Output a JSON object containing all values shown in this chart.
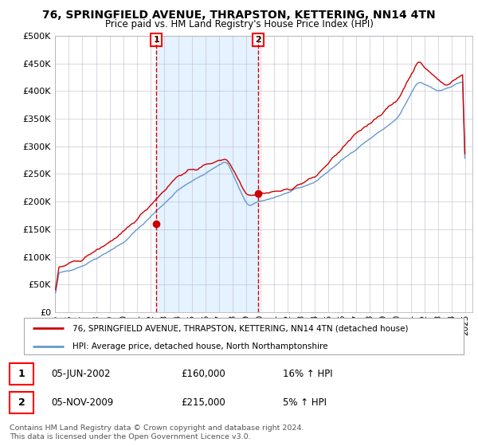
{
  "title_line1": "76, SPRINGFIELD AVENUE, THRAPSTON, KETTERING, NN14 4TN",
  "title_line2": "Price paid vs. HM Land Registry's House Price Index (HPI)",
  "ylabel_ticks": [
    "£0",
    "£50K",
    "£100K",
    "£150K",
    "£200K",
    "£250K",
    "£300K",
    "£350K",
    "£400K",
    "£450K",
    "£500K"
  ],
  "ytick_values": [
    0,
    50000,
    100000,
    150000,
    200000,
    250000,
    300000,
    350000,
    400000,
    450000,
    500000
  ],
  "purchase1_date_label": "05-JUN-2002",
  "purchase1_price": 160000,
  "purchase1_hpi_pct": "16% ↑ HPI",
  "purchase1_x_year": 2002.42,
  "purchase2_date_label": "05-NOV-2009",
  "purchase2_price": 215000,
  "purchase2_hpi_pct": "5% ↑ HPI",
  "purchase2_x_year": 2009.84,
  "legend_line1": "76, SPRINGFIELD AVENUE, THRAPSTON, KETTERING, NN14 4TN (detached house)",
  "legend_line2": "HPI: Average price, detached house, North Northamptonshire",
  "footer_line1": "Contains HM Land Registry data © Crown copyright and database right 2024.",
  "footer_line2": "This data is licensed under the Open Government Licence v3.0.",
  "line_color_red": "#CC0000",
  "line_color_blue": "#6699CC",
  "bg_shade_color": "#DDEEFF",
  "grid_color": "#BBBBCC",
  "xlim_start": 1995,
  "xlim_end": 2025.5,
  "ylim_top": 500000
}
